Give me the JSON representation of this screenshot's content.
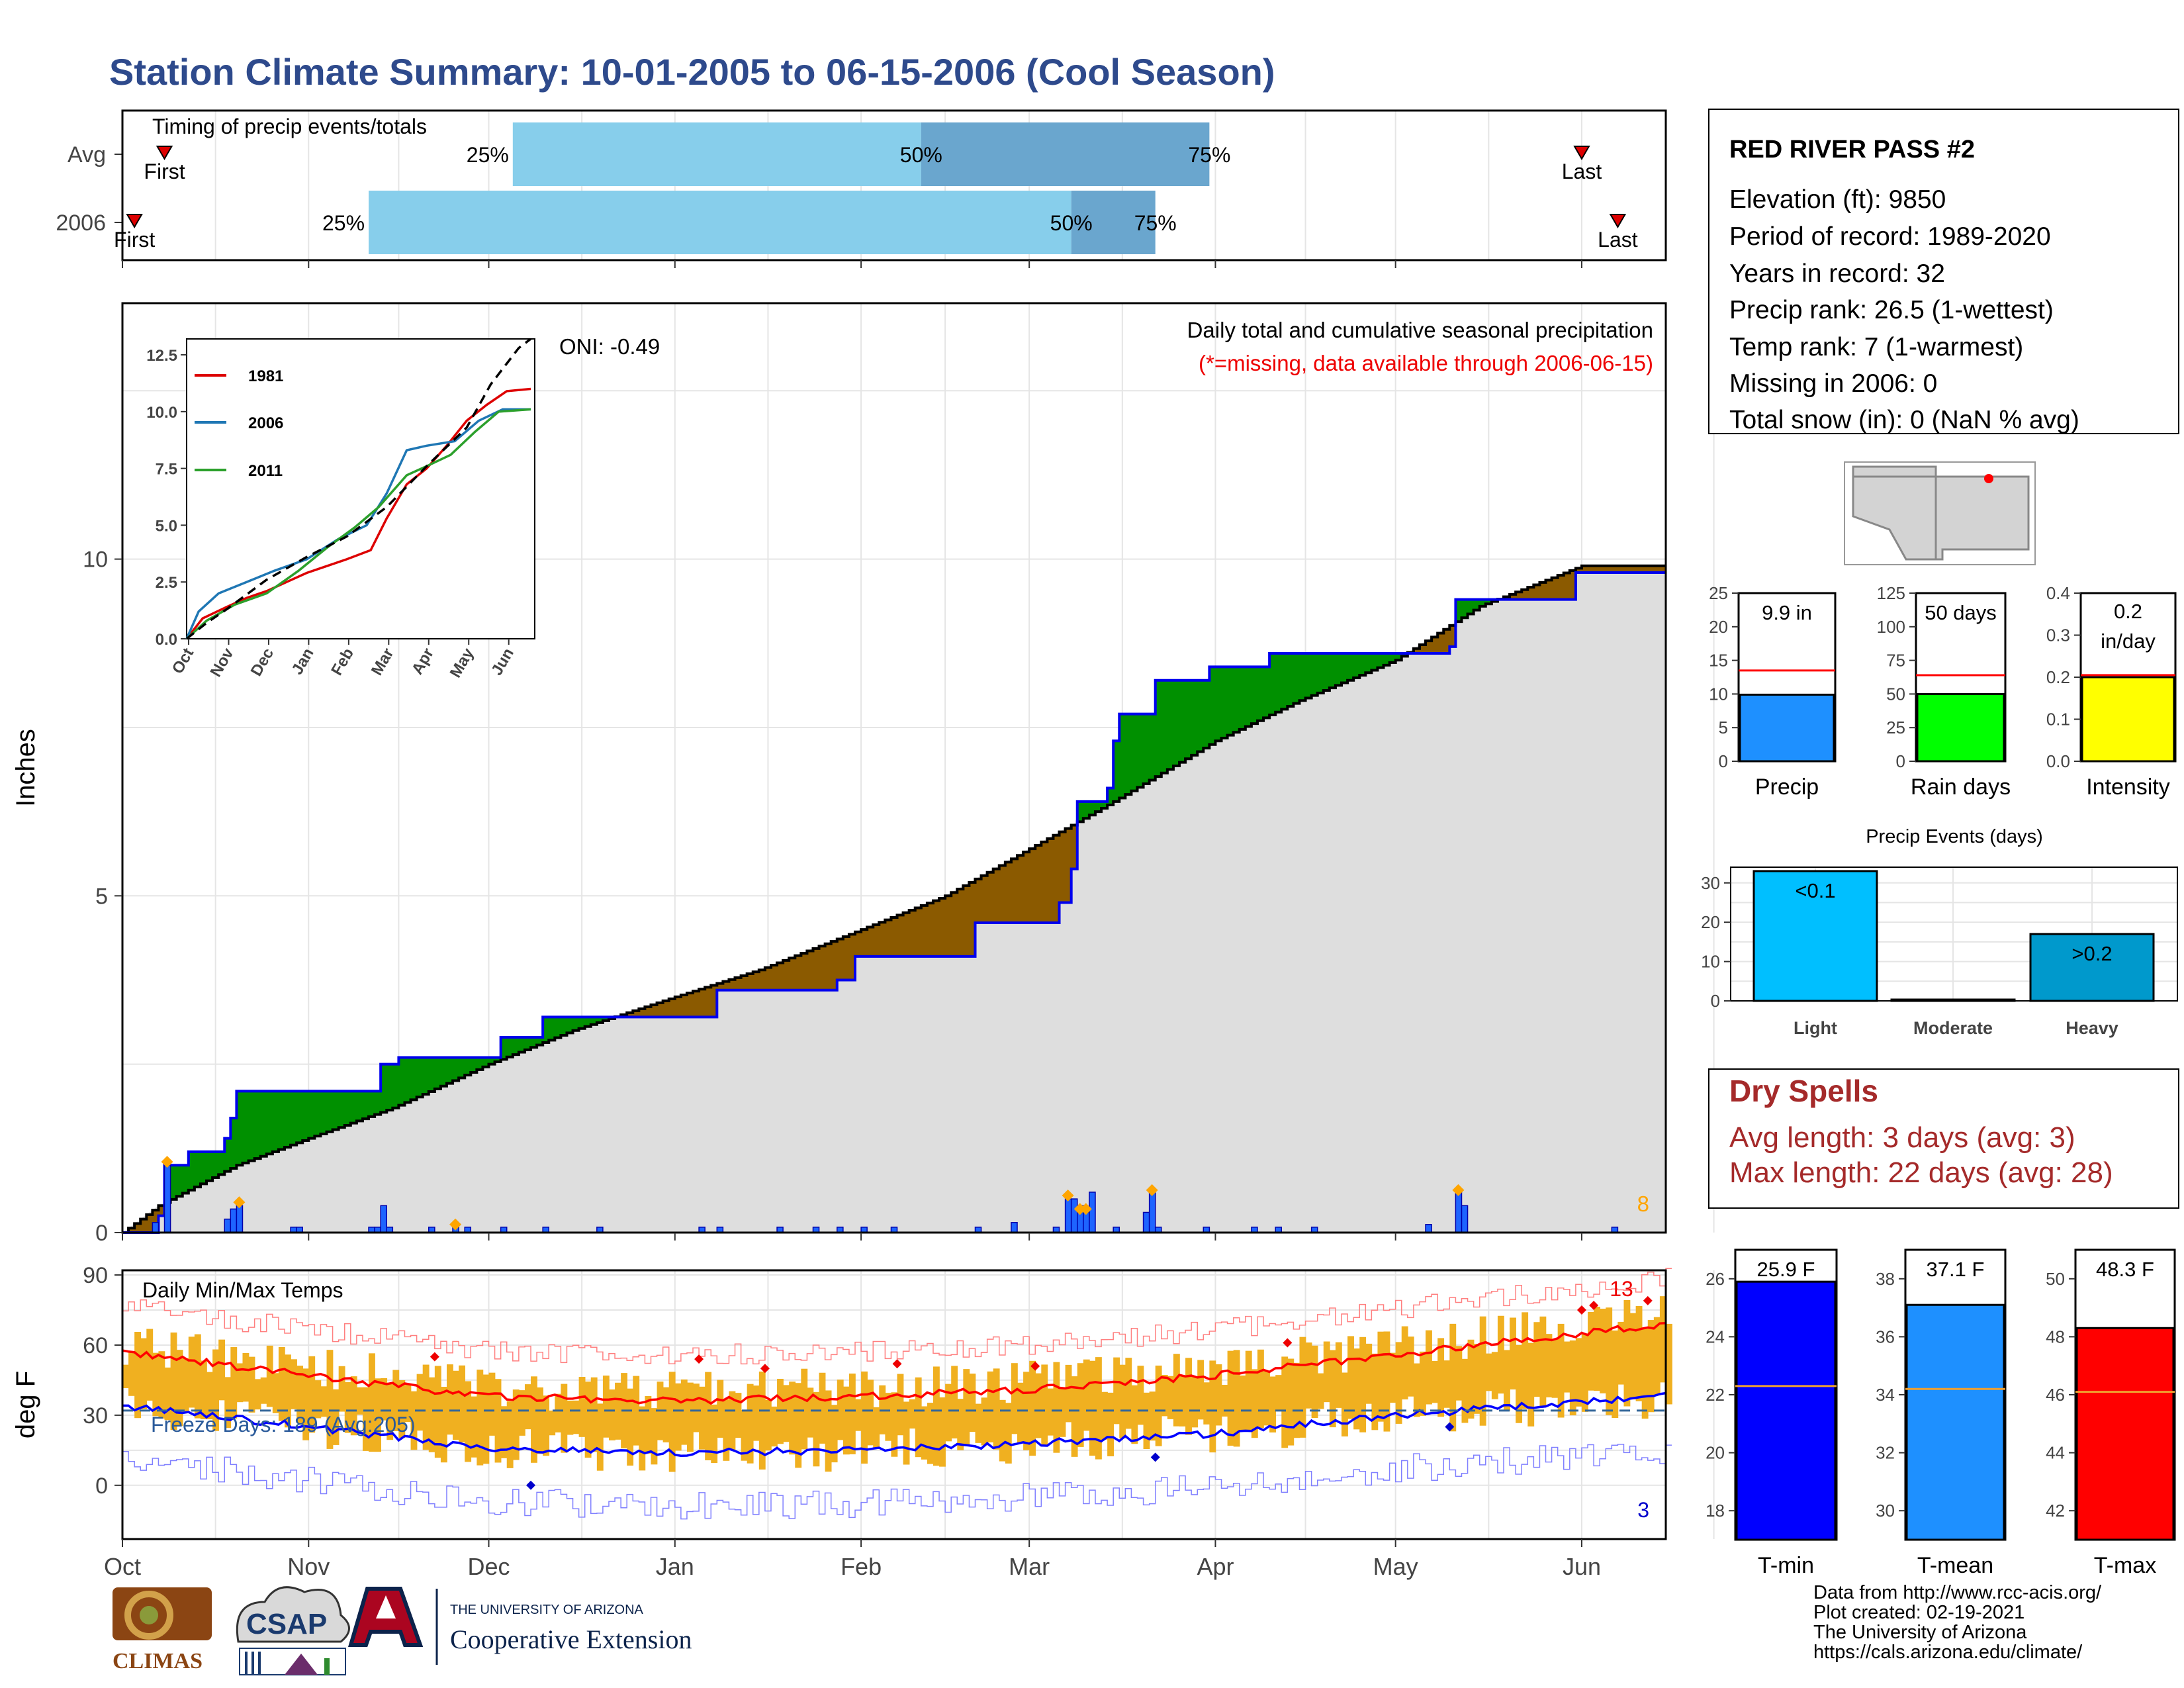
{
  "title": "Station Climate Summary: 10-01-2005 to 06-15-2006 (Cool Season)",
  "colors": {
    "title": "#2e4a8c",
    "accum_fill": "#8b5a00",
    "normal_fill": "#dedede",
    "deficit_fill": "#009000",
    "norm_line": "#0000ee",
    "bar25": "#87ceeb",
    "bar50": "#6aa6ce",
    "tmax": "#ff0000",
    "tmin": "#0000ff",
    "range": "#f0b020",
    "dry": "#a52a2a"
  },
  "timing": {
    "label": "Timing of precip events/totals",
    "rows": [
      {
        "name": "Avg",
        "first_date": "2005-10-08",
        "last_date": "2006-06-01",
        "p25_date": "2005-12-05",
        "p50_date": "2006-02-11",
        "p75_date": "2006-03-31",
        "first_label": "First",
        "last_label": "Last",
        "p25_label": "25%",
        "p50_label": "50%",
        "p75_label": "75%"
      },
      {
        "name": "2006",
        "first_date": "2005-10-03",
        "last_date": "2006-06-07",
        "p25_date": "2005-11-11",
        "p50_date": "2006-03-08",
        "p75_date": "2006-03-22",
        "first_label": "First",
        "last_label": "Last",
        "p25_label": "25%",
        "p50_label": "50%",
        "p75_label": "75%"
      }
    ]
  },
  "chart_data": [
    {
      "type": "area",
      "name": "precip",
      "title": "Daily total and cumulative seasonal precipitation",
      "subtitle": "(*=missing, data available through 2006-06-15)",
      "ylabel": "Inches",
      "ylim": [
        0,
        13.8
      ],
      "yticks": [
        0,
        5,
        10
      ],
      "xlim": [
        "2005-10-01",
        "2006-06-15"
      ],
      "oni_label": "ONI: -0.49",
      "count_label": "8",
      "normal_cumulative": [
        [
          "2005-10-01",
          0.0
        ],
        [
          "2005-10-07",
          0.4
        ],
        [
          "2005-10-20",
          1.0
        ],
        [
          "2005-11-01",
          1.4
        ],
        [
          "2005-11-15",
          1.85
        ],
        [
          "2005-12-01",
          2.5
        ],
        [
          "2005-12-15",
          3.0
        ],
        [
          "2006-01-01",
          3.5
        ],
        [
          "2006-01-15",
          3.9
        ],
        [
          "2006-02-01",
          4.5
        ],
        [
          "2006-02-15",
          5.0
        ],
        [
          "2006-03-01",
          5.7
        ],
        [
          "2006-03-15",
          6.4
        ],
        [
          "2006-04-01",
          7.3
        ],
        [
          "2006-04-15",
          7.9
        ],
        [
          "2006-05-01",
          8.5
        ],
        [
          "2006-05-15",
          9.3
        ],
        [
          "2006-06-01",
          9.9
        ],
        [
          "2006-06-15",
          9.9
        ]
      ],
      "observed_cumulative": [
        [
          "2005-10-01",
          0.0
        ],
        [
          "2005-10-07",
          0.25
        ],
        [
          "2005-10-08",
          1.0
        ],
        [
          "2005-10-12",
          1.2
        ],
        [
          "2005-10-18",
          1.4
        ],
        [
          "2005-10-19",
          1.7
        ],
        [
          "2005-10-20",
          2.1
        ],
        [
          "2005-11-12",
          2.1
        ],
        [
          "2005-11-13",
          2.5
        ],
        [
          "2005-11-16",
          2.6
        ],
        [
          "2005-11-25",
          2.6
        ],
        [
          "2005-12-03",
          2.9
        ],
        [
          "2005-12-10",
          3.2
        ],
        [
          "2006-01-05",
          3.2
        ],
        [
          "2006-01-08",
          3.6
        ],
        [
          "2006-01-28",
          3.75
        ],
        [
          "2006-01-31",
          4.1
        ],
        [
          "2006-02-20",
          4.6
        ],
        [
          "2006-03-06",
          4.9
        ],
        [
          "2006-03-08",
          5.4
        ],
        [
          "2006-03-09",
          6.4
        ],
        [
          "2006-03-14",
          6.6
        ],
        [
          "2006-03-15",
          7.3
        ],
        [
          "2006-03-16",
          7.7
        ],
        [
          "2006-03-22",
          8.2
        ],
        [
          "2006-03-31",
          8.4
        ],
        [
          "2006-04-10",
          8.6
        ],
        [
          "2006-04-24",
          8.6
        ],
        [
          "2006-05-10",
          8.7
        ],
        [
          "2006-05-11",
          9.4
        ],
        [
          "2006-05-31",
          9.8
        ],
        [
          "2006-06-15",
          9.8
        ]
      ],
      "daily_precip": [
        [
          "2005-10-06",
          0.15
        ],
        [
          "2005-10-08",
          1.0
        ],
        [
          "2005-10-18",
          0.2
        ],
        [
          "2005-10-19",
          0.35
        ],
        [
          "2005-10-20",
          0.4
        ],
        [
          "2005-10-29",
          0.08
        ],
        [
          "2005-10-30",
          0.08
        ],
        [
          "2005-11-11",
          0.08
        ],
        [
          "2005-11-12",
          0.08
        ],
        [
          "2005-11-13",
          0.4
        ],
        [
          "2005-11-14",
          0.08
        ],
        [
          "2005-11-21",
          0.08
        ],
        [
          "2005-11-25",
          0.08
        ],
        [
          "2005-11-27",
          0.08
        ],
        [
          "2005-12-03",
          0.08
        ],
        [
          "2005-12-10",
          0.08
        ],
        [
          "2005-12-19",
          0.08
        ],
        [
          "2006-01-05",
          0.08
        ],
        [
          "2006-01-08",
          0.08
        ],
        [
          "2006-01-18",
          0.08
        ],
        [
          "2006-01-24",
          0.08
        ],
        [
          "2006-01-28",
          0.08
        ],
        [
          "2006-02-01",
          0.08
        ],
        [
          "2006-02-06",
          0.08
        ],
        [
          "2006-02-20",
          0.08
        ],
        [
          "2006-02-26",
          0.15
        ],
        [
          "2006-03-05",
          0.08
        ],
        [
          "2006-03-07",
          0.5
        ],
        [
          "2006-03-08",
          0.5
        ],
        [
          "2006-03-09",
          0.4
        ],
        [
          "2006-03-10",
          0.3
        ],
        [
          "2006-03-11",
          0.6
        ],
        [
          "2006-03-15",
          0.08
        ],
        [
          "2006-03-20",
          0.3
        ],
        [
          "2006-03-21",
          0.6
        ],
        [
          "2006-03-22",
          0.08
        ],
        [
          "2006-03-30",
          0.08
        ],
        [
          "2006-04-07",
          0.08
        ],
        [
          "2006-04-11",
          0.08
        ],
        [
          "2006-04-17",
          0.08
        ],
        [
          "2006-05-06",
          0.12
        ],
        [
          "2006-05-11",
          0.6
        ],
        [
          "2006-05-12",
          0.4
        ],
        [
          "2006-06-06",
          0.08
        ]
      ],
      "extreme_markers": [
        [
          "2005-10-08",
          1.05
        ],
        [
          "2005-10-20",
          0.45
        ],
        [
          "2005-11-25",
          0.12
        ],
        [
          "2006-03-07",
          0.55
        ],
        [
          "2006-03-09",
          0.35
        ],
        [
          "2006-03-10",
          0.35
        ],
        [
          "2006-03-21",
          0.63
        ],
        [
          "2006-05-11",
          0.63
        ]
      ]
    },
    {
      "type": "line",
      "name": "inset_cumulative",
      "categories": [
        "Oct",
        "Nov",
        "Dec",
        "Jan",
        "Feb",
        "Mar",
        "Apr",
        "May",
        "Jun"
      ],
      "ylim": [
        0,
        13.2
      ],
      "yticks": [
        "0.0",
        "2.5",
        "5.0",
        "7.5",
        "10.0",
        "12.5"
      ],
      "series": [
        {
          "name": "1981",
          "color": "#dd0000",
          "points": [
            [
              0,
              0
            ],
            [
              0.4,
              0.9
            ],
            [
              1,
              1.4
            ],
            [
              1.5,
              1.8
            ],
            [
              2,
              2.1
            ],
            [
              2.5,
              2.5
            ],
            [
              3,
              2.9
            ],
            [
              3.5,
              3.2
            ],
            [
              4,
              3.5
            ],
            [
              4.6,
              3.9
            ],
            [
              5,
              5.3
            ],
            [
              5.5,
              6.8
            ],
            [
              6,
              7.5
            ],
            [
              6.5,
              8.5
            ],
            [
              7,
              9.6
            ],
            [
              7.5,
              10.3
            ],
            [
              8,
              10.9
            ],
            [
              8.6,
              11.0
            ]
          ]
        },
        {
          "name": "2006",
          "color": "#1f77b4",
          "points": [
            [
              0,
              0
            ],
            [
              0.3,
              1.2
            ],
            [
              0.8,
              2.0
            ],
            [
              1.5,
              2.5
            ],
            [
              2.2,
              3.0
            ],
            [
              3,
              3.5
            ],
            [
              3.8,
              4.4
            ],
            [
              4.5,
              5.0
            ],
            [
              5,
              6.4
            ],
            [
              5.5,
              8.3
            ],
            [
              6,
              8.5
            ],
            [
              6.7,
              8.7
            ],
            [
              7.3,
              9.6
            ],
            [
              7.9,
              10.1
            ],
            [
              8.6,
              10.1
            ]
          ]
        },
        {
          "name": "2011",
          "color": "#2ca02c",
          "points": [
            [
              0,
              0
            ],
            [
              0.5,
              0.8
            ],
            [
              1.2,
              1.5
            ],
            [
              2,
              2.0
            ],
            [
              2.8,
              3.0
            ],
            [
              3.5,
              4.0
            ],
            [
              4.2,
              4.9
            ],
            [
              4.8,
              5.8
            ],
            [
              5.5,
              7.2
            ],
            [
              6,
              7.6
            ],
            [
              6.6,
              8.1
            ],
            [
              7.2,
              9.1
            ],
            [
              7.8,
              10.0
            ],
            [
              8.6,
              10.1
            ]
          ]
        },
        {
          "name": "",
          "color": "#000000",
          "dashed": true,
          "points": [
            [
              0,
              0
            ],
            [
              0.5,
              0.7
            ],
            [
              1,
              1.3
            ],
            [
              2,
              2.6
            ],
            [
              3,
              3.6
            ],
            [
              4,
              4.5
            ],
            [
              5,
              5.8
            ],
            [
              6,
              7.6
            ],
            [
              7,
              9.3
            ],
            [
              7.6,
              11.2
            ],
            [
              8.3,
              12.8
            ],
            [
              8.6,
              13.2
            ]
          ]
        }
      ]
    },
    {
      "type": "line",
      "name": "temps",
      "title": "Daily Min/Max Temps",
      "ylabel": "deg F",
      "ylim": [
        -23,
        92
      ],
      "yticks": [
        0,
        30,
        60,
        90
      ],
      "freeze_label": "Freeze Days: 189 (Avg:205)",
      "freeze_line_value": 32,
      "hot_count_label": "13",
      "cold_count_label": "3",
      "tmax_avg_knots": [
        [
          "2005-10-01",
          57
        ],
        [
          "2005-11-01",
          47
        ],
        [
          "2005-12-01",
          38
        ],
        [
          "2006-01-01",
          36
        ],
        [
          "2006-02-01",
          38
        ],
        [
          "2006-03-01",
          41
        ],
        [
          "2006-04-01",
          47
        ],
        [
          "2006-05-01",
          56
        ],
        [
          "2006-06-15",
          69
        ]
      ],
      "tmin_avg_knots": [
        [
          "2005-10-01",
          34
        ],
        [
          "2005-11-01",
          25
        ],
        [
          "2005-12-01",
          16
        ],
        [
          "2006-01-01",
          14
        ],
        [
          "2006-02-01",
          15
        ],
        [
          "2006-03-01",
          18
        ],
        [
          "2006-04-01",
          22
        ],
        [
          "2006-05-01",
          30
        ],
        [
          "2006-06-15",
          38
        ]
      ],
      "xticks": [
        "Oct",
        "Nov",
        "Dec",
        "Jan",
        "Feb",
        "Mar",
        "Apr",
        "May",
        "Jun"
      ],
      "xtick_dates": [
        "2005-10-01",
        "2005-11-01",
        "2005-12-01",
        "2006-01-01",
        "2006-02-01",
        "2006-03-01",
        "2006-04-01",
        "2006-05-01",
        "2006-06-01"
      ]
    },
    {
      "type": "bar",
      "name": "precip_total",
      "categories": [
        "Precip"
      ],
      "values": [
        9.9
      ],
      "value_label": "9.9 in",
      "ylim": [
        0,
        25
      ],
      "yticks": [
        0,
        5,
        10,
        15,
        20,
        25
      ],
      "reference": 13.5,
      "color": "#1e90ff"
    },
    {
      "type": "bar",
      "name": "rain_days",
      "categories": [
        "Rain days"
      ],
      "values": [
        50
      ],
      "value_label": "50 days",
      "ylim": [
        0,
        125
      ],
      "yticks": [
        0,
        25,
        50,
        75,
        100,
        125
      ],
      "reference": 64,
      "color": "#00ff00"
    },
    {
      "type": "bar",
      "name": "intensity",
      "categories": [
        "Intensity"
      ],
      "values": [
        0.2
      ],
      "value_label": "0.2 in/day",
      "value_label_lines": [
        "0.2",
        "in/day"
      ],
      "ylim": [
        0,
        0.4
      ],
      "yticks": [
        "0.0",
        "0.1",
        "0.2",
        "0.3",
        "0.4"
      ],
      "reference": 0.205,
      "color": "#ffff00"
    },
    {
      "type": "bar",
      "name": "precip_events",
      "title": "Precip Events (days)",
      "categories": [
        "Light",
        "Moderate",
        "Heavy"
      ],
      "values": [
        33,
        0,
        17
      ],
      "value_labels": [
        "<0.1",
        "",
        ">0.2"
      ],
      "ylim": [
        0,
        34
      ],
      "yticks": [
        0,
        10,
        20,
        30
      ],
      "colors": [
        "#00bfff",
        "#00bfff",
        "#0099cc"
      ]
    },
    {
      "type": "bar",
      "name": "tmin_mean",
      "categories": [
        "T-min"
      ],
      "values": [
        25.9
      ],
      "value_label": "25.9 F",
      "ylim": [
        17,
        27
      ],
      "yticks": [
        18,
        20,
        22,
        24,
        26
      ],
      "reference": 22.3,
      "color": "#0000ff"
    },
    {
      "type": "bar",
      "name": "tmean_mean",
      "categories": [
        "T-mean"
      ],
      "values": [
        37.1
      ],
      "value_label": "37.1 F",
      "ylim": [
        29,
        39
      ],
      "yticks": [
        30,
        32,
        34,
        36,
        38
      ],
      "reference": 34.2,
      "color": "#1e90ff"
    },
    {
      "type": "bar",
      "name": "tmax_mean",
      "categories": [
        "T-max"
      ],
      "values": [
        48.3
      ],
      "value_label": "48.3 F",
      "ylim": [
        41,
        51
      ],
      "yticks": [
        42,
        44,
        46,
        48,
        50
      ],
      "reference": 46.1,
      "color": "#ff0000"
    }
  ],
  "station": {
    "name": "RED RIVER PASS #2",
    "lines": [
      "Elevation (ft): 9850",
      "Period of record: 1989-2020",
      "Years in record: 32",
      "Precip rank: 26.5 (1-wettest)",
      "Temp rank: 7 (1-warmest)",
      "Missing in 2006: 0",
      "Total snow (in): 0 (NaN % avg)"
    ]
  },
  "dry_spells": {
    "title": "Dry Spells",
    "avg": "Avg length: 3 days (avg: 3)",
    "max": "Max length: 22 days (avg: 28)"
  },
  "footer": {
    "lines": [
      "Data from http://www.rcc-acis.org/",
      "Plot created: 02-19-2021",
      "The University of Arizona",
      "https://cals.arizona.edu/climate/"
    ],
    "logos": [
      "CLIMAS",
      "CSAP",
      "THE UNIVERSITY OF ARIZONA",
      "Cooperative Extension"
    ]
  }
}
